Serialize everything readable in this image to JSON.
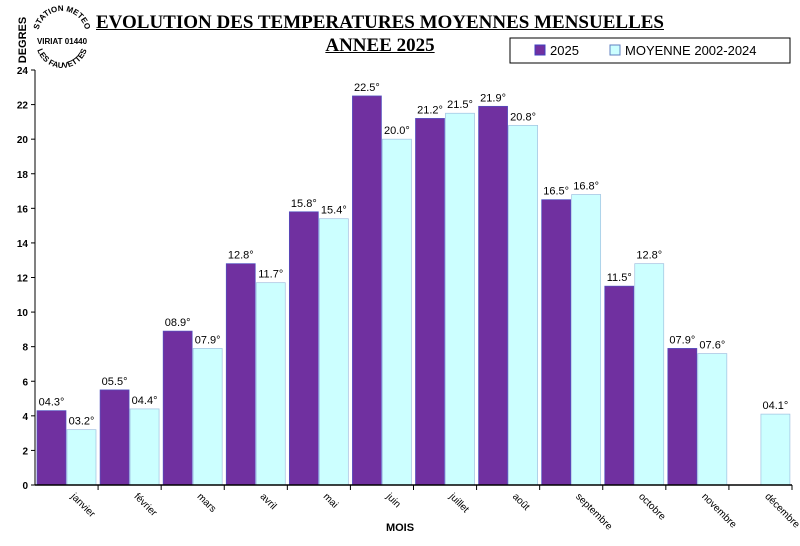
{
  "stamp": {
    "line1": "STATION METEO",
    "line2": "VIRIAT 01440",
    "line3": "LES FAUVETTES"
  },
  "chart_data": {
    "type": "bar",
    "title": "EVOLUTION DES TEMPERATURES MOYENNES MENSUELLES",
    "subtitle": "ANNEE 2025",
    "xlabel": "MOIS",
    "ylabel": "DEGRES",
    "ylim": [
      0,
      24
    ],
    "yticks": [
      0,
      2,
      4,
      6,
      8,
      10,
      12,
      14,
      16,
      18,
      20,
      22,
      24
    ],
    "grid": false,
    "legend_position": "top-right",
    "categories": [
      "janvier",
      "février",
      "mars",
      "avril",
      "mai",
      "juin",
      "juillet",
      "août",
      "septembre",
      "octobre",
      "novembre",
      "décembre"
    ],
    "series": [
      {
        "name": "2025",
        "color": "#7030A0",
        "values": [
          4.3,
          5.5,
          8.9,
          12.8,
          15.8,
          22.5,
          21.2,
          21.9,
          16.5,
          11.5,
          7.9,
          null
        ],
        "labels": [
          "04.3°",
          "05.5°",
          "08.9°",
          "12.8°",
          "15.8°",
          "22.5°",
          "21.2°",
          "21.9°",
          "16.5°",
          "11.5°",
          "07.9°",
          null
        ]
      },
      {
        "name": "MOYENNE 2002-2024",
        "color": "#CCFFFF",
        "values": [
          3.2,
          4.4,
          7.9,
          11.7,
          15.4,
          20.0,
          21.5,
          20.8,
          16.8,
          12.8,
          7.6,
          4.1
        ],
        "labels": [
          "03.2°",
          "04.4°",
          "07.9°",
          "11.7°",
          "15.4°",
          "20.0°",
          "21.5°",
          "20.8°",
          "16.8°",
          "12.8°",
          "07.6°",
          "04.1°"
        ]
      }
    ]
  }
}
